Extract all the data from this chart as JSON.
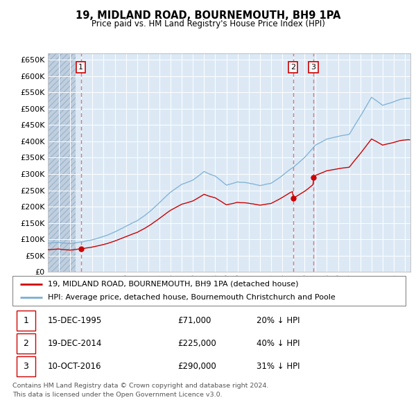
{
  "title": "19, MIDLAND ROAD, BOURNEMOUTH, BH9 1PA",
  "subtitle": "Price paid vs. HM Land Registry's House Price Index (HPI)",
  "legend_line1": "19, MIDLAND ROAD, BOURNEMOUTH, BH9 1PA (detached house)",
  "legend_line2": "HPI: Average price, detached house, Bournemouth Christchurch and Poole",
  "transactions": [
    {
      "num": 1,
      "date": "15-DEC-1995",
      "price": "£71,000",
      "pct": "20% ↓ HPI",
      "year": 1995.96,
      "value": 71000
    },
    {
      "num": 2,
      "date": "19-DEC-2014",
      "price": "£225,000",
      "pct": "40% ↓ HPI",
      "year": 2014.96,
      "value": 225000
    },
    {
      "num": 3,
      "date": "10-OCT-2016",
      "price": "£290,000",
      "pct": "31% ↓ HPI",
      "year": 2016.79,
      "value": 290000
    }
  ],
  "footer_line1": "Contains HM Land Registry data © Crown copyright and database right 2024.",
  "footer_line2": "This data is licensed under the Open Government Licence v3.0.",
  "bg_color": "#dce9f5",
  "hatch_color": "#c0cfe0",
  "grid_color": "#ffffff",
  "red_line_color": "#cc0000",
  "blue_line_color": "#7aafd4",
  "dot_color": "#cc0000",
  "dashed_line_color": "#e87070",
  "ylim": [
    0,
    670000
  ],
  "xlim_start": 1993.0,
  "xlim_end": 2025.5,
  "hatch_end": 1995.5
}
